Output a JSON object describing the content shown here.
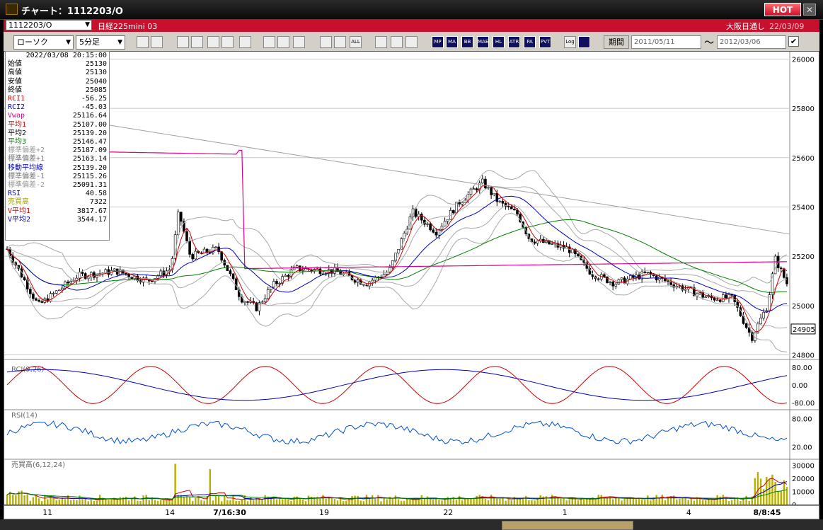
{
  "window": {
    "title": "チャート：1112203/O",
    "hot_label": "HOT",
    "close_label": "✕",
    "app_icon": "chart-app-icon"
  },
  "symbol_bar": {
    "symbol_value": "1112203/O",
    "symbol_name": "日経225mini 03",
    "market": "大阪日通し",
    "date": "22/03/09",
    "accent_color": "#c8102e"
  },
  "toolbar": {
    "chart_type": "ローソク",
    "interval": "5分足",
    "period_label": "期間",
    "start_date": "2011/05/11",
    "end_date": "2012/03/06",
    "range_separator": "～",
    "check_mark": "✔",
    "tool_icons": [
      "zoom-icon",
      "list-icon",
      "cross-icon",
      "search-icon",
      "bar-icon",
      "redgreen-icon",
      "alert-icon",
      "line-draw-icon",
      "pointer-icon",
      "undo-icon",
      "shift-left-icon",
      "shift-right-icon",
      "all-icon",
      "settings-icon",
      "wrench-icon",
      "palette-icon",
      "mp-icon",
      "ma-icon",
      "bb-icon",
      "mae-icon",
      "hl-icon",
      "atr-icon",
      "para-icon",
      "pvt-icon",
      "log-icon",
      "window-icon"
    ],
    "tool_labels": [
      "",
      "",
      "",
      "",
      "",
      "",
      "",
      "",
      "",
      "",
      "",
      "",
      "ALL",
      "",
      "",
      "",
      "MP",
      "MA",
      "BB",
      "MAE",
      "HL",
      "ATR",
      "PA RA",
      "PVT",
      "Log",
      ""
    ]
  },
  "info_panel": {
    "datetime": "2022/03/08  20:15:00",
    "rows": [
      {
        "label": "始値",
        "value": "25130",
        "color": "#000"
      },
      {
        "label": "高値",
        "value": "25130",
        "color": "#000"
      },
      {
        "label": "安値",
        "value": "25040",
        "color": "#000"
      },
      {
        "label": "終値",
        "value": "25085",
        "color": "#000"
      },
      {
        "label": "RCI1",
        "value": "-56.25",
        "color": "#d00000"
      },
      {
        "label": "RCI2",
        "value": "-45.03",
        "color": "#0000c0"
      },
      {
        "label": "Vwap",
        "value": "25116.64",
        "color": "#e0008c"
      },
      {
        "label": "平均1",
        "value": "25107.00",
        "color": "#d00000"
      },
      {
        "label": "平均2",
        "value": "25139.20",
        "color": "#000"
      },
      {
        "label": "平均3",
        "value": "25146.47",
        "color": "#008000"
      },
      {
        "label": "標準偏差+2",
        "value": "25187.09",
        "color": "#999"
      },
      {
        "label": "標準偏差+1",
        "value": "25163.14",
        "color": "#777"
      },
      {
        "label": "移動平均線",
        "value": "25139.20",
        "color": "#0000c0"
      },
      {
        "label": "標準偏差-1",
        "value": "25115.26",
        "color": "#777"
      },
      {
        "label": "標準偏差-2",
        "value": "25091.31",
        "color": "#999"
      },
      {
        "label": "RSI",
        "value": "40.58",
        "color": "#0000c0"
      },
      {
        "label": "売買高",
        "value": "7322",
        "color": "#a0a000"
      },
      {
        "label": "V平均1",
        "value": "3817.67",
        "color": "#d00000"
      },
      {
        "label": "V平均2",
        "value": "3544.17",
        "color": "#0000c0"
      }
    ]
  },
  "price_chart": {
    "y_ticks": [
      "26000",
      "25800",
      "25600",
      "25400",
      "25200",
      "25000",
      "24800"
    ],
    "y_tick_values": [
      26000,
      25800,
      25600,
      25400,
      25200,
      25000,
      24800
    ],
    "price_range": [
      24790,
      26030
    ],
    "current_price": "24905",
    "current_price_value": 24905,
    "up_color": "#ffffff",
    "down_color": "#000000",
    "colors": {
      "vwap": "#e0008c",
      "avg1": "#d00000",
      "avg2": "#0000c0",
      "avg3": "#008000",
      "band": "#a8a8a8",
      "trend": "#a0a0a0"
    }
  },
  "rci_panel": {
    "label": "RCI(9,26)",
    "y_ticks": [
      "80.00",
      "0.00",
      "-80.00"
    ],
    "y_tick_values": [
      80,
      0,
      -80
    ],
    "range": [
      -100,
      100
    ]
  },
  "rsi_panel": {
    "label": "RSI(14)",
    "y_ticks": [
      "80.00",
      "20.00"
    ],
    "y_tick_values": [
      80,
      20
    ],
    "range": [
      0,
      100
    ]
  },
  "volume_panel": {
    "label": "売買高(6,12,24)",
    "y_ticks": [
      "30000",
      "20000",
      "10000",
      "0"
    ],
    "y_tick_values": [
      30000,
      20000,
      10000,
      0
    ],
    "range": [
      0,
      35000
    ],
    "bar_color": "#b8b000"
  },
  "x_axis": {
    "labels": [
      {
        "text": "11",
        "frac": 0.047,
        "bold": false
      },
      {
        "text": "14",
        "frac": 0.197,
        "bold": false
      },
      {
        "text": "7/16:30",
        "frac": 0.256,
        "bold": true
      },
      {
        "text": "19",
        "frac": 0.386,
        "bold": false
      },
      {
        "text": "22",
        "frac": 0.538,
        "bold": false
      },
      {
        "text": "1",
        "frac": 0.684,
        "bold": false
      },
      {
        "text": "4",
        "frac": 0.836,
        "bold": false
      },
      {
        "text": "8/8:45",
        "frac": 0.918,
        "bold": true
      }
    ]
  }
}
